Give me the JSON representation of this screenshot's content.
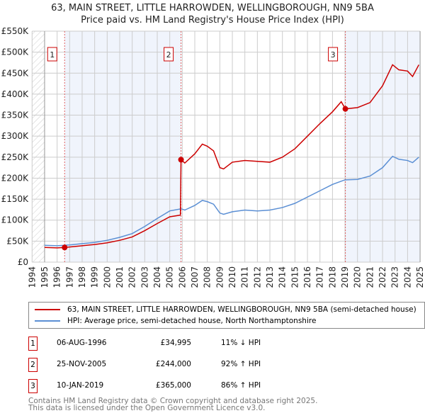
{
  "title": "63, MAIN STREET, LITTLE HARROWDEN, WELLINGBOROUGH, NN9 5BA",
  "subtitle": "Price paid vs. HM Land Registry's House Price Index (HPI)",
  "chart_data": {
    "type": "line",
    "title": "63, MAIN STREET, LITTLE HARROWDEN, WELLINGBOROUGH, NN9 5BA",
    "subtitle": "Price paid vs. HM Land Registry's House Price Index (HPI)",
    "xlim": [
      1994,
      2025
    ],
    "ylim": [
      0,
      550000
    ],
    "x_ticks": [
      "1994",
      "1995",
      "1996",
      "1997",
      "1998",
      "1999",
      "2000",
      "2001",
      "2002",
      "2003",
      "2004",
      "2005",
      "2006",
      "2007",
      "2008",
      "2009",
      "2010",
      "2011",
      "2012",
      "2013",
      "2014",
      "2015",
      "2016",
      "2017",
      "2018",
      "2019",
      "2020",
      "2021",
      "2022",
      "2023",
      "2024",
      "2025"
    ],
    "y_ticks": [
      "£0",
      "£50K",
      "£100K",
      "£150K",
      "£200K",
      "£250K",
      "£300K",
      "£350K",
      "£400K",
      "£450K",
      "£500K",
      "£550K"
    ],
    "grid": true,
    "series": [
      {
        "name": "63, MAIN STREET, LITTLE HARROWDEN, WELLINGBOROUGH, NN9 5BA (semi-detached house)",
        "color": "#cc0000",
        "x": [
          1995,
          1996,
          1996.6,
          1997,
          1998,
          1999,
          2000,
          2001,
          2002,
          2003,
          2004,
          2005,
          2005.85,
          2005.9,
          2006.2,
          2007,
          2007.6,
          2008,
          2008.5,
          2009,
          2009.3,
          2010,
          2011,
          2012,
          2013,
          2014,
          2015,
          2016,
          2017,
          2018,
          2018.7,
          2019.03,
          2020,
          2021,
          2022,
          2022.8,
          2023.3,
          2024,
          2024.4,
          2024.9
        ],
        "y": [
          35000,
          34000,
          34995,
          36000,
          39000,
          42000,
          46000,
          52000,
          60000,
          75000,
          92000,
          108000,
          112000,
          244000,
          236000,
          258000,
          281000,
          276000,
          265000,
          225000,
          222000,
          238000,
          242000,
          240000,
          238000,
          250000,
          270000,
          300000,
          330000,
          358000,
          382000,
          365000,
          368000,
          380000,
          420000,
          470000,
          458000,
          455000,
          442000,
          470000
        ]
      },
      {
        "name": "HPI: Average price, semi-detached house, North Northamptonshire",
        "color": "#5b8fd4",
        "x": [
          1995,
          1996,
          1997,
          1998,
          1999,
          2000,
          2001,
          2002,
          2003,
          2004,
          2005,
          2005.9,
          2006.2,
          2007,
          2007.6,
          2008,
          2008.5,
          2009,
          2009.3,
          2010,
          2011,
          2012,
          2013,
          2014,
          2015,
          2016,
          2017,
          2018,
          2019,
          2020,
          2021,
          2022,
          2022.8,
          2023.3,
          2024,
          2024.4,
          2024.9
        ],
        "y": [
          40000,
          39000,
          41000,
          44000,
          47000,
          52000,
          59000,
          68000,
          85000,
          104000,
          122000,
          127000,
          124000,
          135000,
          147000,
          144000,
          138000,
          117000,
          114000,
          120000,
          124000,
          122000,
          124000,
          130000,
          140000,
          155000,
          170000,
          185000,
          196000,
          197000,
          205000,
          225000,
          252000,
          245000,
          242000,
          237000,
          250000
        ]
      }
    ],
    "sales": [
      {
        "label": "1",
        "date": "06-AUG-1996",
        "year": 1996.6,
        "price": "£34,995",
        "value": 34995,
        "hpi": "11% ↓ HPI"
      },
      {
        "label": "2",
        "date": "25-NOV-2005",
        "year": 2005.9,
        "price": "£244,000",
        "value": 244000,
        "hpi": "92% ↑ HPI"
      },
      {
        "label": "3",
        "date": "10-JAN-2019",
        "year": 2019.03,
        "price": "£365,000",
        "value": 365000,
        "hpi": "86% ↑ HPI"
      }
    ]
  },
  "footer": [
    "Contains HM Land Registry data © Crown copyright and database right 2025.",
    "This data is licensed under the Open Government Licence v3.0."
  ]
}
